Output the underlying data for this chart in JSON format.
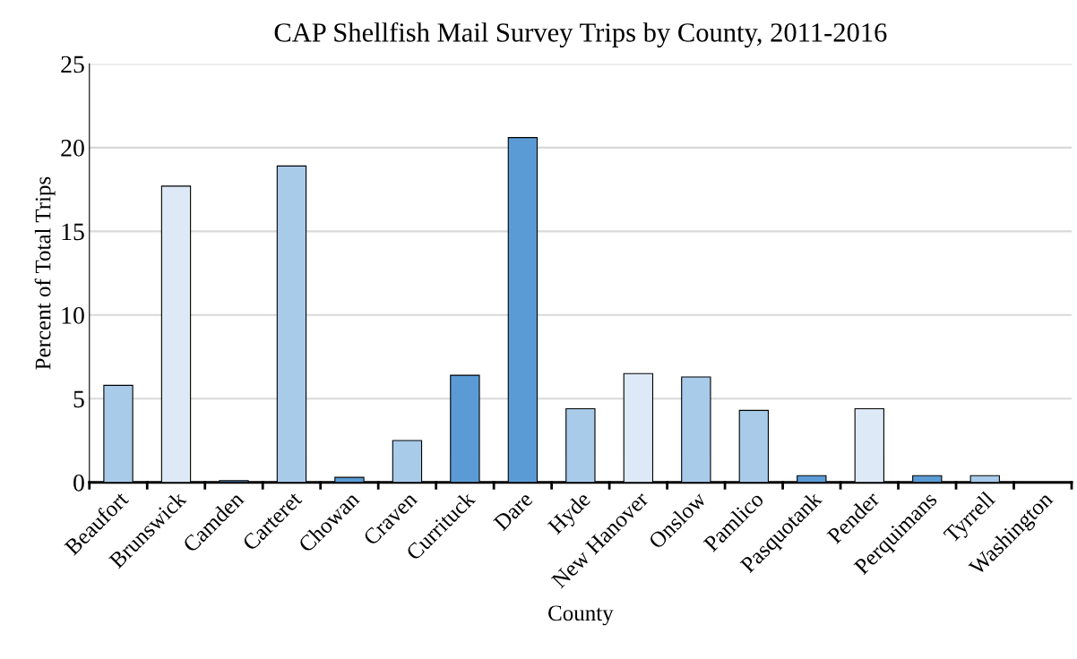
{
  "chart_data": {
    "type": "bar",
    "title": "CAP Shellfish Mail Survey Trips by County, 2011-2016",
    "xlabel": "County",
    "ylabel": "Percent of Total Trips",
    "categories": [
      "Beaufort",
      "Brunswick",
      "Camden",
      "Carteret",
      "Chowan",
      "Craven",
      "Currituck",
      "Dare",
      "Hyde",
      "New Hanover",
      "Onslow",
      "Pamlico",
      "Pasquotank",
      "Pender",
      "Perquimans",
      "Tyrrell",
      "Washington"
    ],
    "values": [
      5.8,
      17.7,
      0.1,
      18.9,
      0.3,
      2.5,
      6.4,
      20.6,
      4.4,
      6.5,
      6.3,
      4.3,
      0.4,
      4.4,
      0.4,
      0.4,
      null
    ],
    "colors": [
      "#a9cbea",
      "#dde9f6",
      "#5b9bd5",
      "#a9cbea",
      "#5b9bd5",
      "#a9cbea",
      "#5b9bd5",
      "#5b9bd5",
      "#a9cbea",
      "#dde9f6",
      "#a9cbea",
      "#a9cbea",
      "#5b9bd5",
      "#dde9f6",
      "#5b9bd5",
      "#a9cbea",
      "#5b9bd5"
    ],
    "ylim": [
      0,
      25
    ],
    "yticks": [
      0,
      5,
      10,
      15,
      20,
      25
    ],
    "grid": "y"
  }
}
